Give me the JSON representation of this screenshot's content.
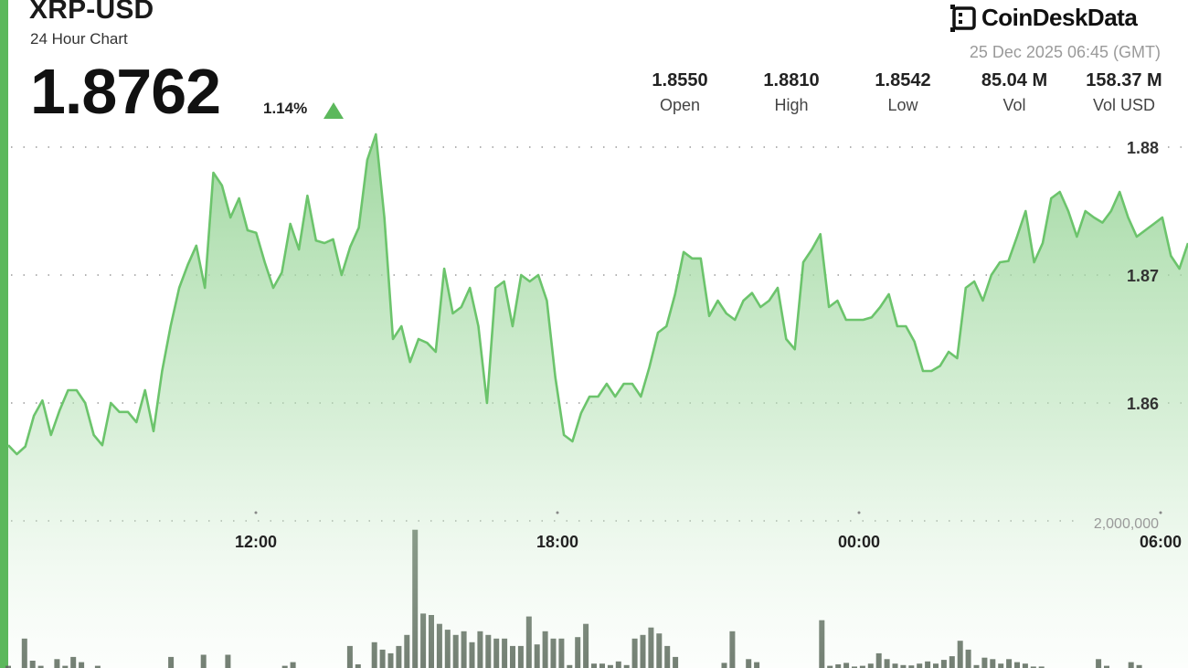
{
  "header": {
    "symbol": "XRP-USD",
    "subtitle": "24 Hour Chart",
    "price": "1.8762",
    "change": "1.14%",
    "change_direction": "up",
    "brand": "CoinDeskData",
    "timestamp": "25 Dec 2025 06:45 (GMT)"
  },
  "stats": [
    {
      "value": "1.8550",
      "label": "Open"
    },
    {
      "value": "1.8810",
      "label": "High"
    },
    {
      "value": "1.8542",
      "label": "Low"
    },
    {
      "value": "85.04 M",
      "label": "Vol"
    },
    {
      "value": "158.37 M",
      "label": "Vol USD"
    }
  ],
  "colors": {
    "accent": "#5cb85c",
    "line": "#6cc46c",
    "fill_top": "#8fd18f",
    "volume": "#5f6b5f"
  },
  "chart_data": {
    "type": "area",
    "price_series": {
      "y_ticks": [
        "1.88",
        "1.87",
        "1.86"
      ],
      "ylim": [
        1.8545,
        1.8815
      ],
      "x_start": "07:00",
      "x_step_minutes": 10,
      "values": [
        1.8567,
        1.856,
        1.8566,
        1.859,
        1.8602,
        1.8575,
        1.8594,
        1.861,
        1.861,
        1.86,
        1.8575,
        1.8567,
        1.86,
        1.8593,
        1.8593,
        1.8585,
        1.861,
        1.8578,
        1.8625,
        1.866,
        1.869,
        1.8708,
        1.8723,
        1.869,
        1.878,
        1.877,
        1.8745,
        1.876,
        1.8735,
        1.8733,
        1.871,
        1.869,
        1.8702,
        1.874,
        1.872,
        1.8762,
        1.8727,
        1.8725,
        1.8728,
        1.87,
        1.8722,
        1.8737,
        1.879,
        1.881,
        1.8745,
        1.865,
        1.866,
        1.8632,
        1.865,
        1.8647,
        1.864,
        1.8705,
        1.867,
        1.8675,
        1.869,
        1.866,
        1.86,
        1.869,
        1.8695,
        1.866,
        1.87,
        1.8695,
        1.87,
        1.868,
        1.862,
        1.8575,
        1.857,
        1.8592,
        1.8605,
        1.8605,
        1.8615,
        1.8605,
        1.8615,
        1.8615,
        1.8605,
        1.8628,
        1.8655,
        1.866,
        1.8685,
        1.8718,
        1.8713,
        1.8713,
        1.8668,
        1.868,
        1.867,
        1.8665,
        1.868,
        1.8686,
        1.8675,
        1.868,
        1.869,
        1.865,
        1.8642,
        1.871,
        1.872,
        1.8732,
        1.8675,
        1.868,
        1.8665,
        1.8665,
        1.8665,
        1.8667,
        1.8675,
        1.8685,
        1.866,
        1.866,
        1.8648,
        1.8625,
        1.8625,
        1.8629,
        1.864,
        1.8635,
        1.869,
        1.8695,
        1.868,
        1.87,
        1.871,
        1.8711,
        1.873,
        1.875,
        1.871,
        1.8725,
        1.876,
        1.8765,
        1.875,
        1.873,
        1.875,
        1.8745,
        1.8741,
        1.875,
        1.8765,
        1.8745,
        1.873,
        1.8735,
        1.874,
        1.8745,
        1.8715,
        1.8705,
        1.8725
      ]
    },
    "volume_series": {
      "tick_label": "2,000,000",
      "ylim": [
        0,
        2000000
      ],
      "values": [
        30000,
        0,
        400000,
        100000,
        30000,
        0,
        120000,
        30000,
        150000,
        80000,
        0,
        30000,
        0,
        0,
        0,
        0,
        0,
        0,
        0,
        0,
        150000,
        0,
        0,
        0,
        180000,
        0,
        0,
        180000,
        0,
        0,
        0,
        0,
        0,
        0,
        30000,
        80000,
        0,
        0,
        0,
        0,
        0,
        0,
        300000,
        50000,
        0,
        350000,
        250000,
        200000,
        300000,
        450000,
        1880000,
        740000,
        720000,
        600000,
        520000,
        450000,
        500000,
        350000,
        500000,
        450000,
        400000,
        400000,
        300000,
        300000,
        700000,
        320000,
        500000,
        400000,
        400000,
        40000,
        420000,
        600000,
        60000,
        60000,
        40000,
        90000,
        40000,
        400000,
        450000,
        550000,
        470000,
        300000,
        150000,
        0,
        0,
        0,
        0,
        0,
        70000,
        500000,
        0,
        120000,
        80000,
        0,
        0,
        0,
        0,
        0,
        0,
        0,
        650000,
        30000,
        50000,
        70000,
        20000,
        30000,
        60000,
        200000,
        120000,
        60000,
        40000,
        35000,
        60000,
        90000,
        60000,
        110000,
        160000,
        370000,
        250000,
        40000,
        140000,
        120000,
        60000,
        120000,
        80000,
        60000,
        20000,
        20000,
        0,
        0,
        0,
        0,
        0,
        0,
        120000,
        30000,
        0,
        0,
        80000,
        40000,
        0,
        0,
        0,
        0,
        0,
        0
      ]
    },
    "x_ticks": [
      "12:00",
      "18:00",
      "00:00",
      "06:00"
    ],
    "grid": true
  }
}
